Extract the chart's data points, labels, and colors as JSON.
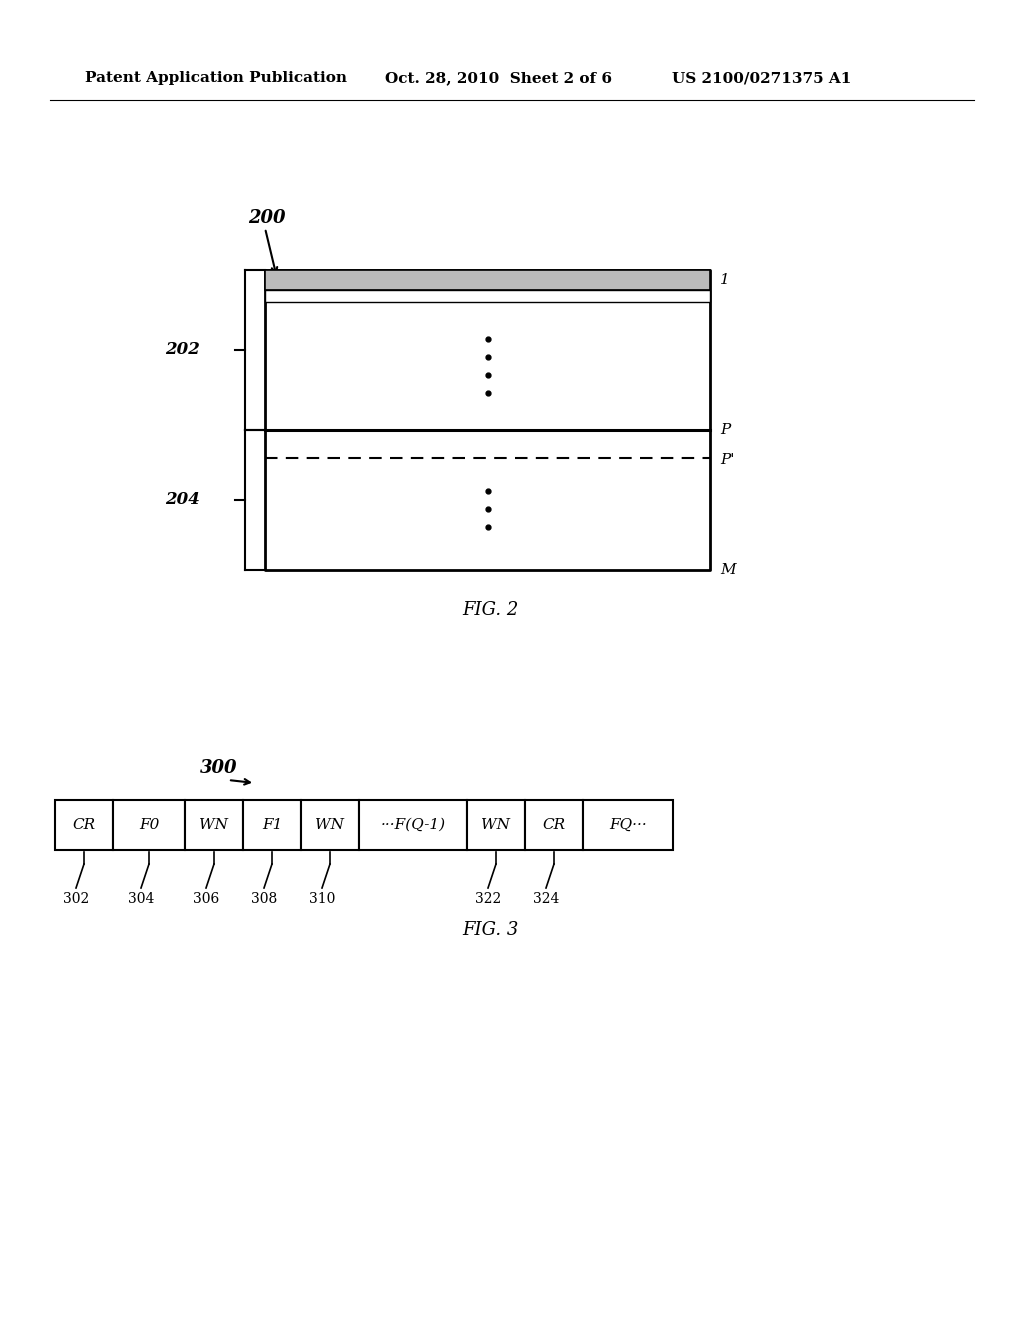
{
  "bg_color": "#ffffff",
  "header_text_left": "Patent Application Publication",
  "header_text_mid": "Oct. 28, 2010  Sheet 2 of 6",
  "header_text_right": "US 2100/0271375 A1",
  "fig2_label": "200",
  "fig2_caption": "FIG. 2",
  "fig3_label": "300",
  "fig3_caption": "FIG. 3",
  "fig2_row1_label": "1",
  "fig2_rowP_label": "P",
  "fig2_rowPp_label": "P'",
  "fig2_rowM_label": "M",
  "fig2_brace202_label": "202",
  "fig2_brace204_label": "204",
  "fig3_boxes": [
    "CR",
    "F0",
    "WN",
    "F1",
    "WN",
    "···F(Q-1)",
    "WN",
    "CR",
    "FQ···"
  ],
  "fig3_sub_labels": [
    "302",
    "304",
    "306",
    "308",
    "310",
    "322",
    "324"
  ],
  "fig3_sub_label_box_idx": [
    0,
    1,
    2,
    3,
    4,
    6,
    7
  ]
}
